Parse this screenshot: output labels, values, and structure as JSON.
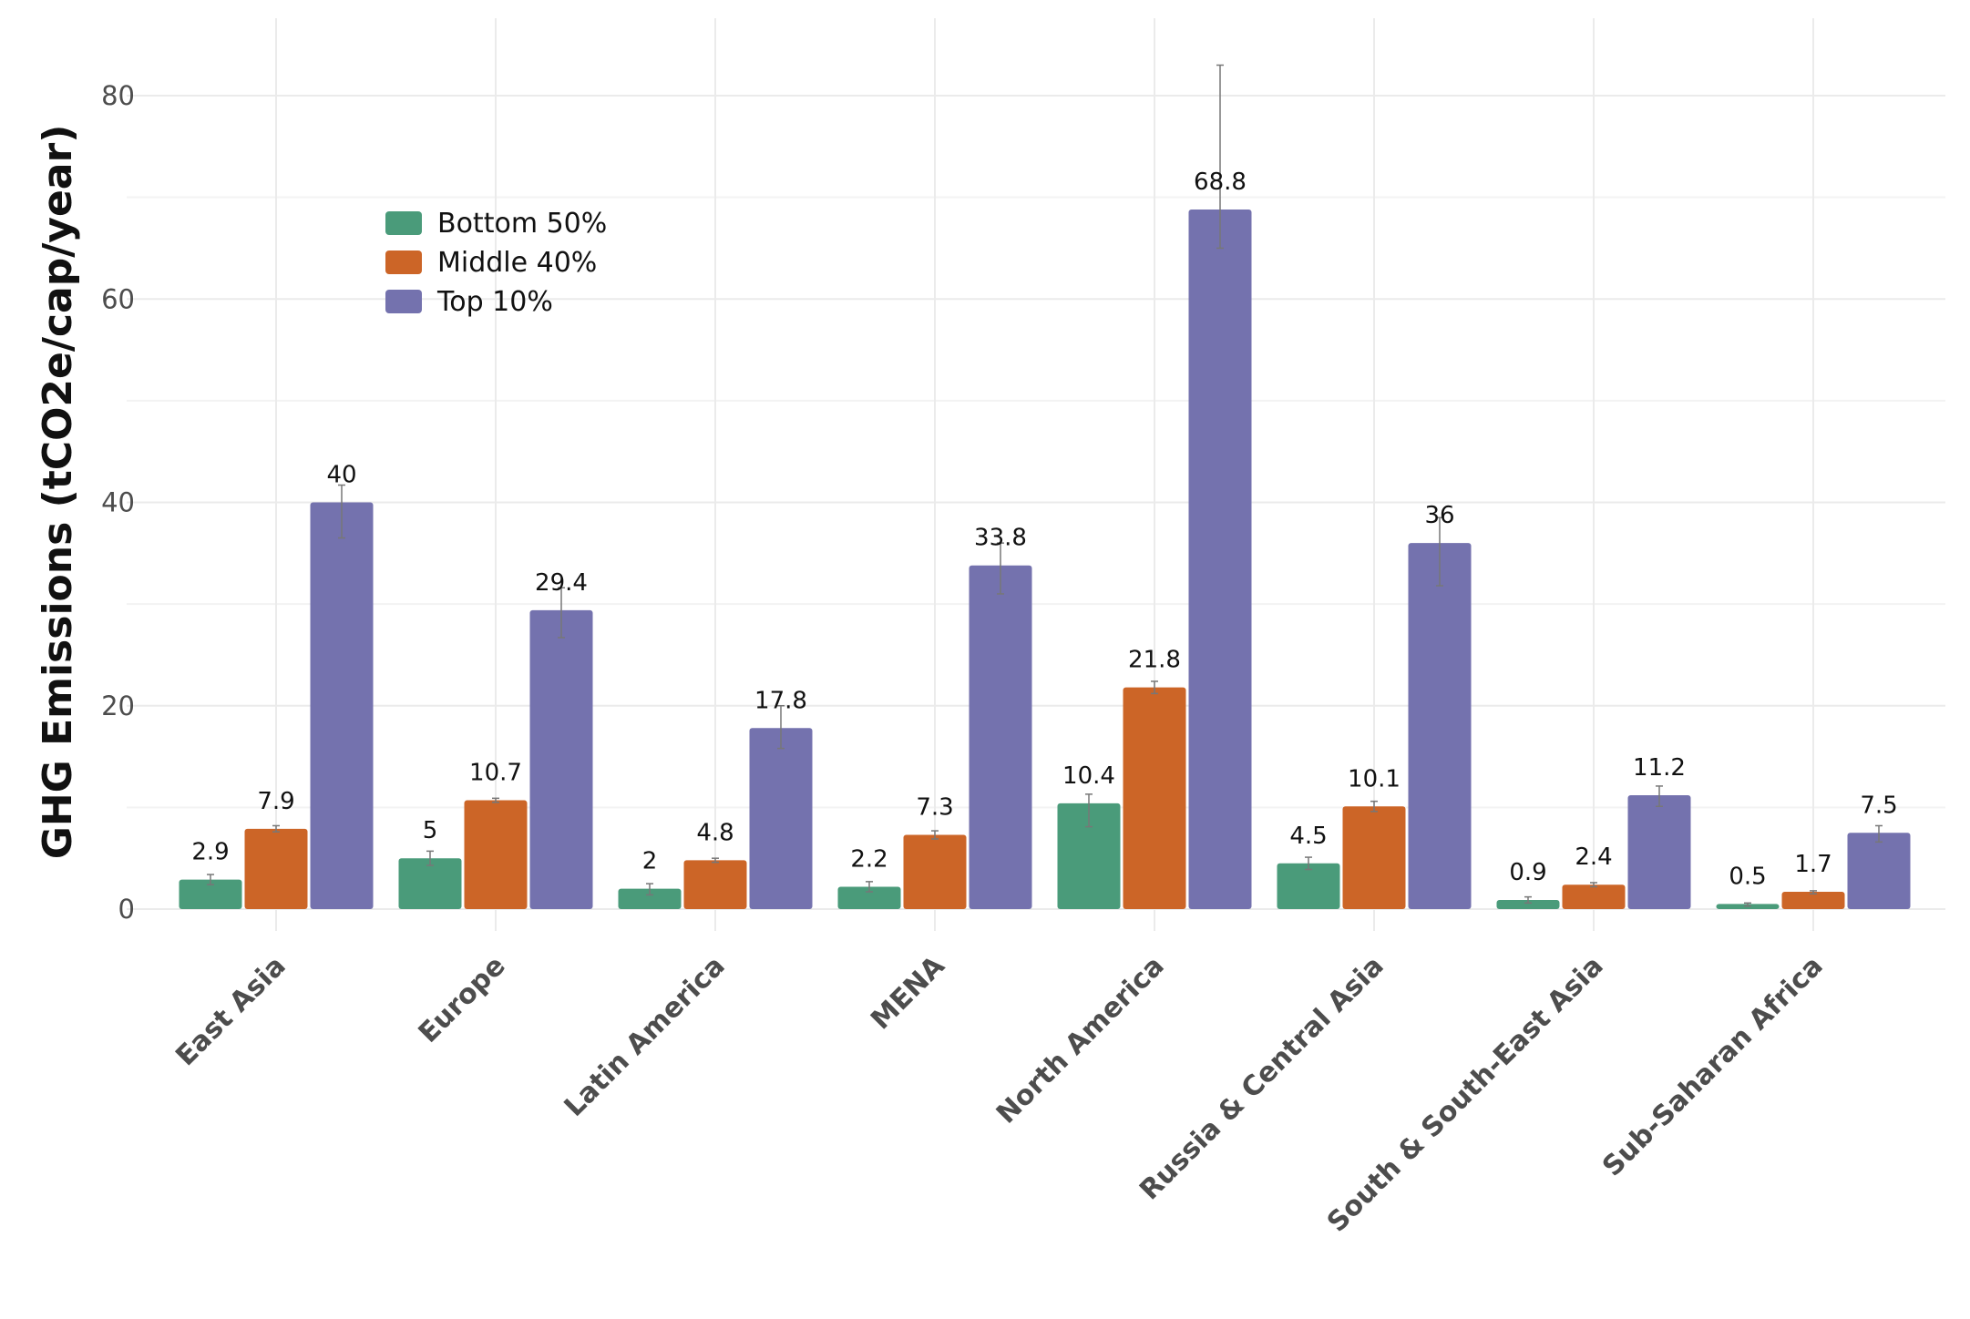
{
  "chart_data": {
    "type": "bar",
    "title": "",
    "xlabel": "",
    "ylabel": "GHG Emissions (tCO2e/cap/year)",
    "ylim": [
      -4,
      86
    ],
    "yticks": [
      0,
      20,
      40,
      60,
      80
    ],
    "grid": true,
    "legend_position": "top-left",
    "categories": [
      "East Asia",
      "Europe",
      "Latin America",
      "MENA",
      "North America",
      "Russia & Central Asia",
      "South & South-East Asia",
      "Sub-Saharan Africa"
    ],
    "series": [
      {
        "name": "Bottom 50%",
        "color": "#4a9b7a",
        "values": [
          2.9,
          5,
          2,
          2.2,
          10.4,
          4.5,
          0.9,
          0.5
        ],
        "error_low": [
          2.4,
          4.3,
          1.4,
          1.7,
          8.1,
          3.9,
          0.6,
          0.3
        ],
        "error_high": [
          3.4,
          5.7,
          2.5,
          2.7,
          11.3,
          5.1,
          1.2,
          0.6
        ]
      },
      {
        "name": "Middle 40%",
        "color": "#cc6527",
        "values": [
          7.9,
          10.7,
          4.8,
          7.3,
          21.8,
          10.1,
          2.4,
          1.7
        ],
        "error_low": [
          7.6,
          10.5,
          4.6,
          6.9,
          21.2,
          9.6,
          2.2,
          1.5
        ],
        "error_high": [
          8.2,
          10.9,
          5.0,
          7.7,
          22.4,
          10.6,
          2.6,
          1.8
        ]
      },
      {
        "name": "Top 10%",
        "color": "#7472ae",
        "values": [
          40,
          29.4,
          17.8,
          33.8,
          68.8,
          36,
          11.2,
          7.5
        ],
        "error_low": [
          36.5,
          26.7,
          15.8,
          31,
          65,
          31.8,
          10.1,
          6.6
        ],
        "error_high": [
          41.7,
          31.6,
          20,
          36,
          83,
          38.5,
          12.1,
          8.2
        ]
      }
    ]
  }
}
